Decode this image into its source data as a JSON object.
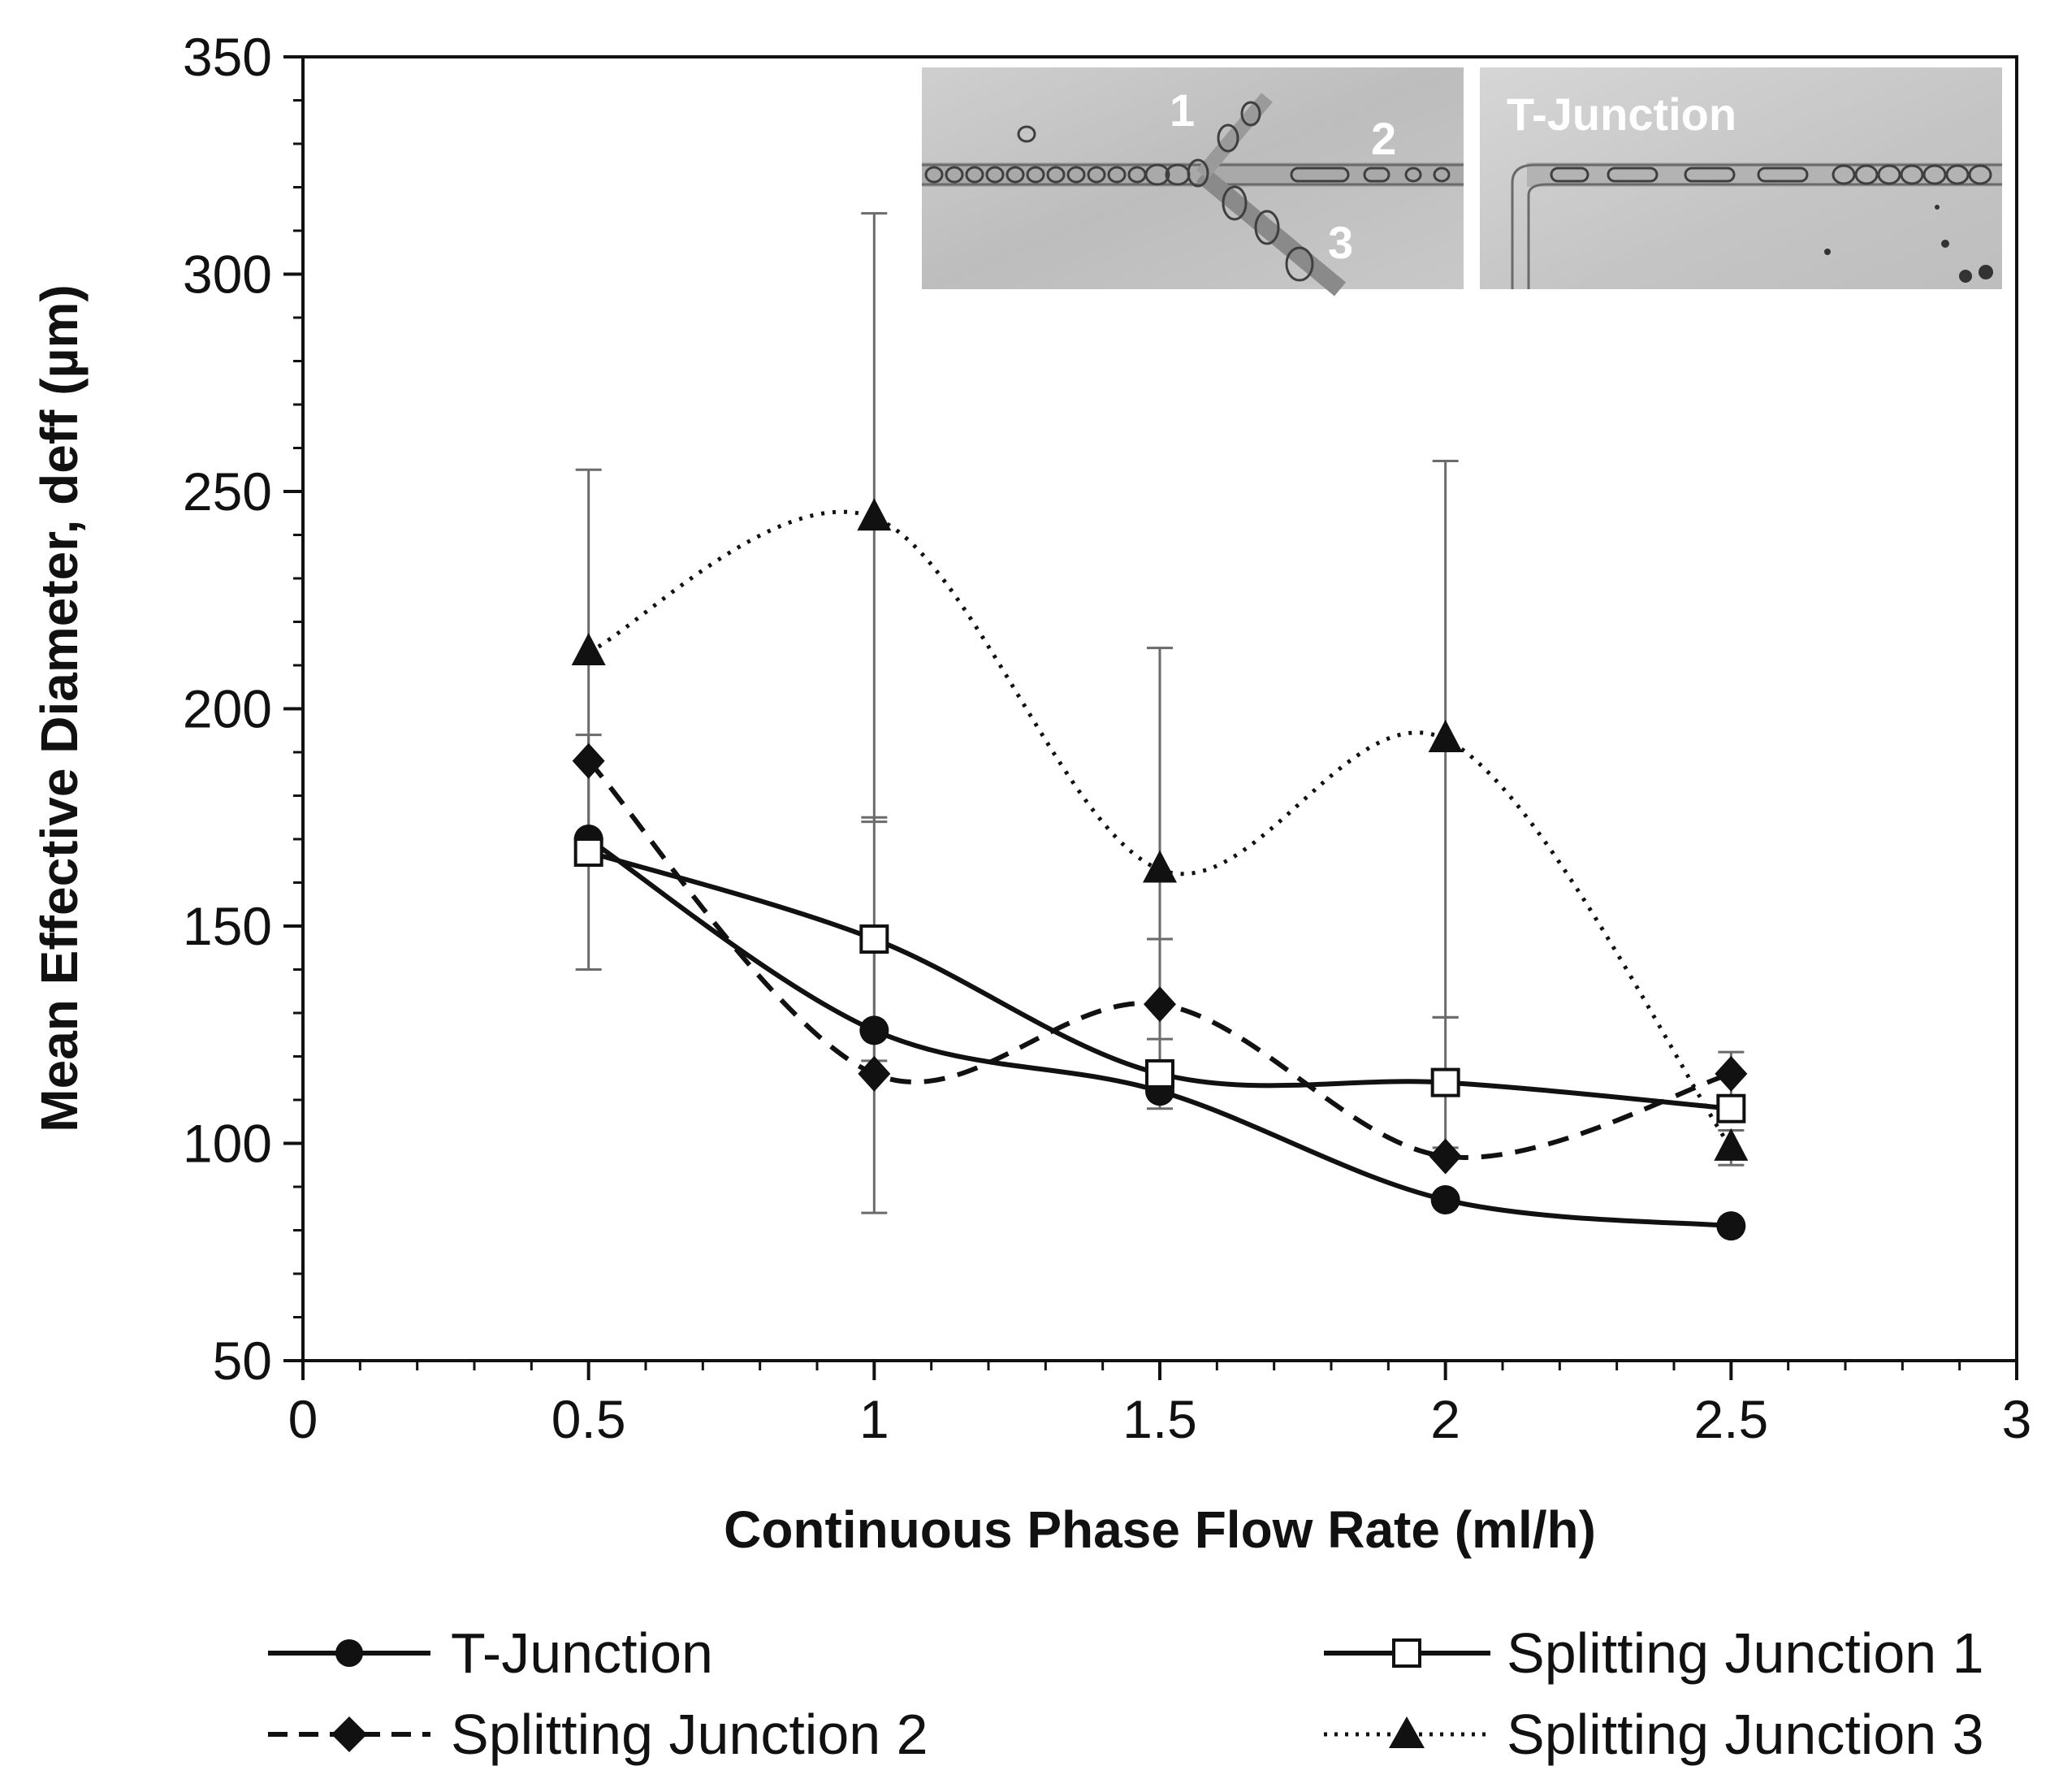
{
  "chart_data": {
    "type": "line",
    "title": "",
    "xlabel": "Continuous Phase Flow Rate (ml/h)",
    "ylabel": "Mean Effective Diameter, deff (µm)",
    "xlim": [
      0,
      3
    ],
    "ylim": [
      50,
      350
    ],
    "x_ticks": [
      0,
      0.5,
      1,
      1.5,
      2,
      2.5,
      3
    ],
    "x_tick_labels": [
      "0",
      "0.5",
      "1",
      "1.5",
      "2",
      "2.5",
      "3"
    ],
    "y_ticks": [
      50,
      100,
      150,
      200,
      250,
      300,
      350
    ],
    "y_tick_labels": [
      "50",
      "100",
      "150",
      "200",
      "250",
      "300",
      "350"
    ],
    "grid": false,
    "legend_position": "bottom",
    "series": [
      {
        "name": "T-Junction",
        "marker": "circle-filled",
        "line_style": "solid",
        "x": [
          0.5,
          1,
          1.5,
          2,
          2.5
        ],
        "y": [
          170,
          126,
          112,
          87,
          81
        ],
        "error": [
          0,
          0,
          0,
          0,
          0
        ]
      },
      {
        "name": "Splitting Junction 1",
        "marker": "square-open",
        "line_style": "solid",
        "x": [
          0.5,
          1,
          1.5,
          2,
          2.5
        ],
        "y": [
          167,
          147,
          116,
          114,
          108
        ],
        "error": [
          27,
          28,
          8,
          15,
          3
        ]
      },
      {
        "name": "Splitting Junction 2",
        "marker": "diamond-filled",
        "line_style": "dashed",
        "x": [
          0.5,
          1,
          1.5,
          2,
          2.5
        ],
        "y": [
          188,
          116,
          132,
          97,
          116
        ],
        "error": [
          0,
          32,
          15,
          0,
          5
        ]
      },
      {
        "name": "Splitting Junction 3",
        "marker": "triangle-filled",
        "line_style": "dotted",
        "x": [
          0.5,
          1,
          1.5,
          2,
          2.5
        ],
        "y": [
          213,
          244,
          163,
          193,
          99
        ],
        "error": [
          42,
          70,
          51,
          64,
          4
        ]
      }
    ],
    "inset_labels": {
      "left_panel": [
        "1",
        "2",
        "3"
      ],
      "right_panel": "T-Junction"
    }
  }
}
